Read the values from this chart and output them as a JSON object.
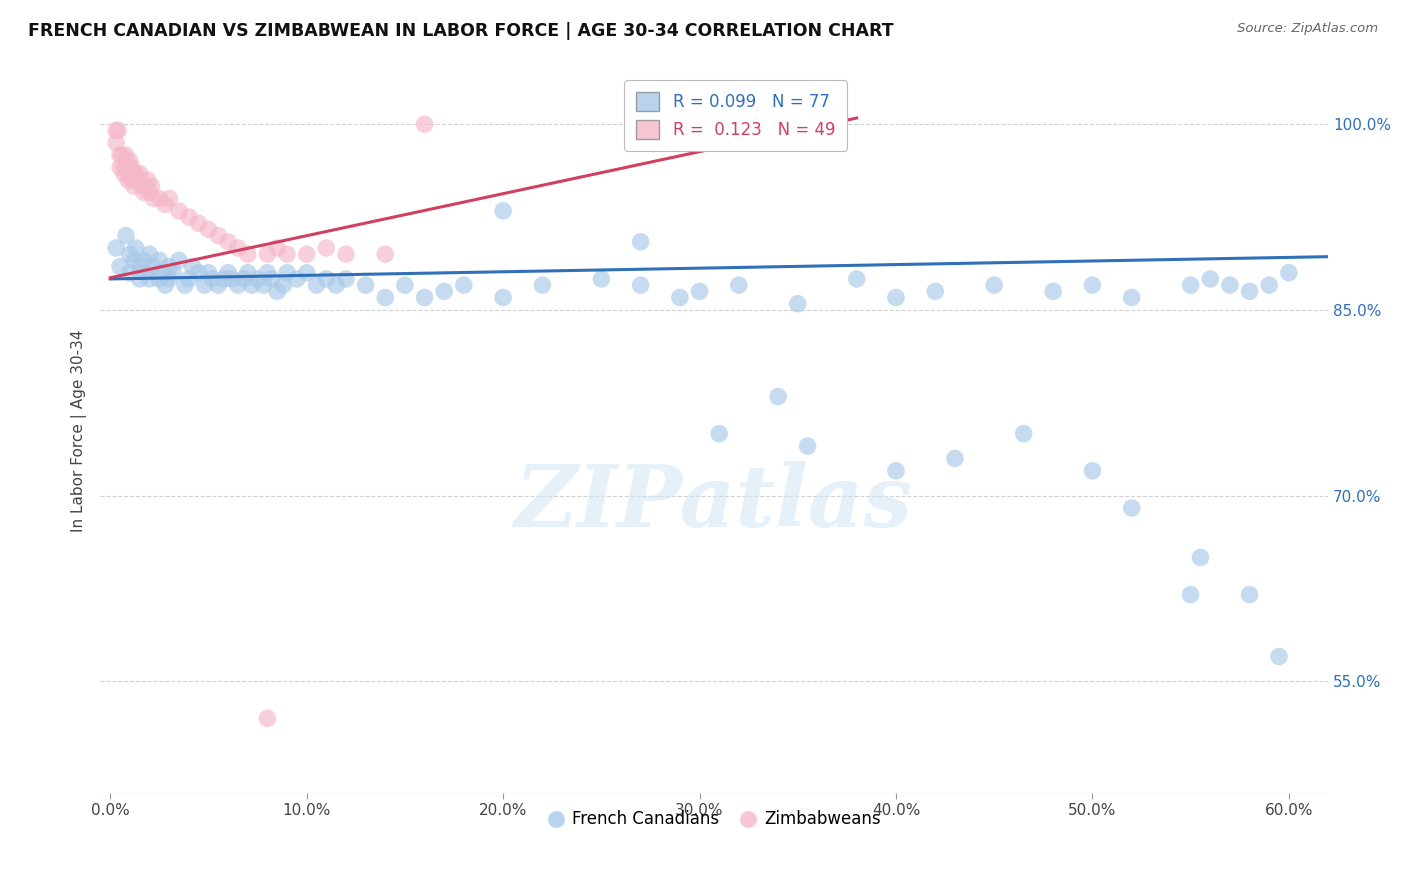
{
  "title": "FRENCH CANADIAN VS ZIMBABWEAN IN LABOR FORCE | AGE 30-34 CORRELATION CHART",
  "source": "Source: ZipAtlas.com",
  "ylabel_label": "In Labor Force | Age 30-34",
  "xlim": [
    -0.005,
    0.62
  ],
  "ylim": [
    0.46,
    1.045
  ],
  "ytick_vals": [
    0.55,
    0.7,
    0.85,
    1.0
  ],
  "xtick_vals": [
    0.0,
    0.1,
    0.2,
    0.3,
    0.4,
    0.5,
    0.6
  ],
  "legend_r_blue": "0.099",
  "legend_n_blue": "77",
  "legend_r_pink": "0.123",
  "legend_n_pink": "49",
  "blue_color": "#a8c8e8",
  "pink_color": "#f4b8c8",
  "blue_line_color": "#3070b8",
  "pink_line_color": "#d04060",
  "watermark_text": "ZIPatlas",
  "blue_scatter_x": [
    0.003,
    0.005,
    0.008,
    0.01,
    0.01,
    0.012,
    0.013,
    0.015,
    0.015,
    0.017,
    0.018,
    0.02,
    0.02,
    0.022,
    0.025,
    0.025,
    0.027,
    0.028,
    0.03,
    0.03,
    0.032,
    0.035,
    0.038,
    0.04,
    0.042,
    0.045,
    0.048,
    0.05,
    0.052,
    0.055,
    0.058,
    0.06,
    0.062,
    0.065,
    0.068,
    0.07,
    0.072,
    0.075,
    0.078,
    0.08,
    0.082,
    0.085,
    0.088,
    0.09,
    0.095,
    0.1,
    0.105,
    0.11,
    0.115,
    0.12,
    0.13,
    0.14,
    0.15,
    0.16,
    0.17,
    0.18,
    0.2,
    0.22,
    0.25,
    0.27,
    0.29,
    0.3,
    0.32,
    0.35,
    0.38,
    0.4,
    0.42,
    0.45,
    0.48,
    0.5,
    0.52,
    0.55,
    0.56,
    0.57,
    0.58,
    0.59,
    0.6
  ],
  "blue_scatter_y": [
    0.9,
    0.885,
    0.91,
    0.895,
    0.88,
    0.89,
    0.9,
    0.885,
    0.875,
    0.89,
    0.88,
    0.895,
    0.875,
    0.885,
    0.89,
    0.875,
    0.88,
    0.87,
    0.885,
    0.875,
    0.88,
    0.89,
    0.87,
    0.875,
    0.885,
    0.88,
    0.87,
    0.88,
    0.875,
    0.87,
    0.875,
    0.88,
    0.875,
    0.87,
    0.875,
    0.88,
    0.87,
    0.875,
    0.87,
    0.88,
    0.875,
    0.865,
    0.87,
    0.88,
    0.875,
    0.88,
    0.87,
    0.875,
    0.87,
    0.875,
    0.87,
    0.86,
    0.87,
    0.86,
    0.865,
    0.87,
    0.86,
    0.87,
    0.875,
    0.87,
    0.86,
    0.865,
    0.87,
    0.855,
    0.875,
    0.86,
    0.865,
    0.87,
    0.865,
    0.87,
    0.86,
    0.87,
    0.875,
    0.87,
    0.865,
    0.87,
    0.88
  ],
  "blue_outlier_x": [
    0.2,
    0.27,
    0.31,
    0.34,
    0.355,
    0.4,
    0.43,
    0.465,
    0.5,
    0.52,
    0.55,
    0.555,
    0.58,
    0.595
  ],
  "blue_outlier_y": [
    0.93,
    0.905,
    0.75,
    0.78,
    0.74,
    0.72,
    0.73,
    0.75,
    0.72,
    0.69,
    0.62,
    0.65,
    0.62,
    0.57
  ],
  "pink_scatter_x": [
    0.003,
    0.003,
    0.004,
    0.005,
    0.005,
    0.006,
    0.007,
    0.007,
    0.008,
    0.008,
    0.009,
    0.009,
    0.01,
    0.01,
    0.011,
    0.011,
    0.012,
    0.012,
    0.013,
    0.014,
    0.015,
    0.015,
    0.016,
    0.017,
    0.018,
    0.019,
    0.02,
    0.021,
    0.022,
    0.025,
    0.028,
    0.03,
    0.035,
    0.04,
    0.045,
    0.05,
    0.055,
    0.06,
    0.065,
    0.07,
    0.08,
    0.085,
    0.09,
    0.1,
    0.11,
    0.12,
    0.14,
    0.16,
    0.08
  ],
  "pink_scatter_y": [
    0.995,
    0.985,
    0.995,
    0.975,
    0.965,
    0.975,
    0.965,
    0.96,
    0.975,
    0.965,
    0.955,
    0.965,
    0.97,
    0.96,
    0.965,
    0.955,
    0.96,
    0.95,
    0.96,
    0.955,
    0.955,
    0.96,
    0.95,
    0.945,
    0.95,
    0.955,
    0.945,
    0.95,
    0.94,
    0.94,
    0.935,
    0.94,
    0.93,
    0.925,
    0.92,
    0.915,
    0.91,
    0.905,
    0.9,
    0.895,
    0.895,
    0.9,
    0.895,
    0.895,
    0.9,
    0.895,
    0.895,
    1.0,
    0.52
  ]
}
